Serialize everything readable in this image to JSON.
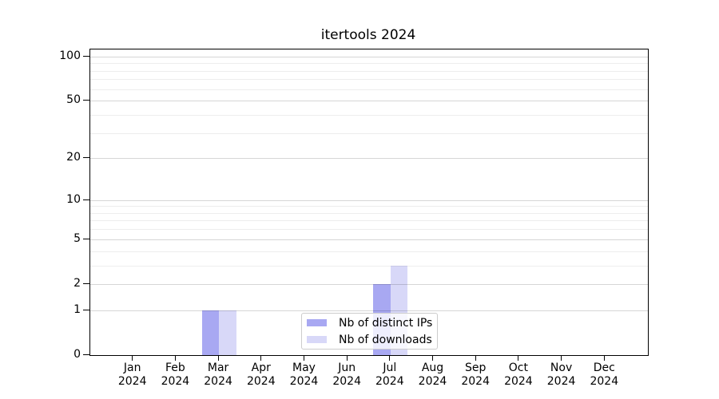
{
  "title": "itertools 2024",
  "chart_data": {
    "type": "bar",
    "title": "itertools 2024",
    "x_categories": [
      "Jan",
      "Feb",
      "Mar",
      "Apr",
      "May",
      "Jun",
      "Jul",
      "Aug",
      "Sep",
      "Oct",
      "Nov",
      "Dec"
    ],
    "x_year_label": "2024",
    "series": [
      {
        "name": "Nb of distinct IPs",
        "color": "#a8a8f2",
        "values": [
          0,
          0,
          1,
          0,
          0,
          0,
          2,
          0,
          0,
          0,
          0,
          0
        ]
      },
      {
        "name": "Nb of downloads",
        "color": "#d8d8f8",
        "values": [
          0,
          0,
          1,
          0,
          0,
          0,
          3,
          0,
          0,
          0,
          0,
          0
        ]
      }
    ],
    "y_axis": {
      "scale": "log1p",
      "ticks": [
        0,
        1,
        2,
        5,
        10,
        20,
        50,
        100
      ],
      "minor_ticks": [
        3,
        4,
        6,
        7,
        8,
        9,
        30,
        40,
        60,
        70,
        80,
        90
      ],
      "top_value": 111.4
    },
    "legend": {
      "entries": [
        "Nb of distinct IPs",
        "Nb of downloads"
      ],
      "position": "lower center"
    },
    "grid": true
  }
}
